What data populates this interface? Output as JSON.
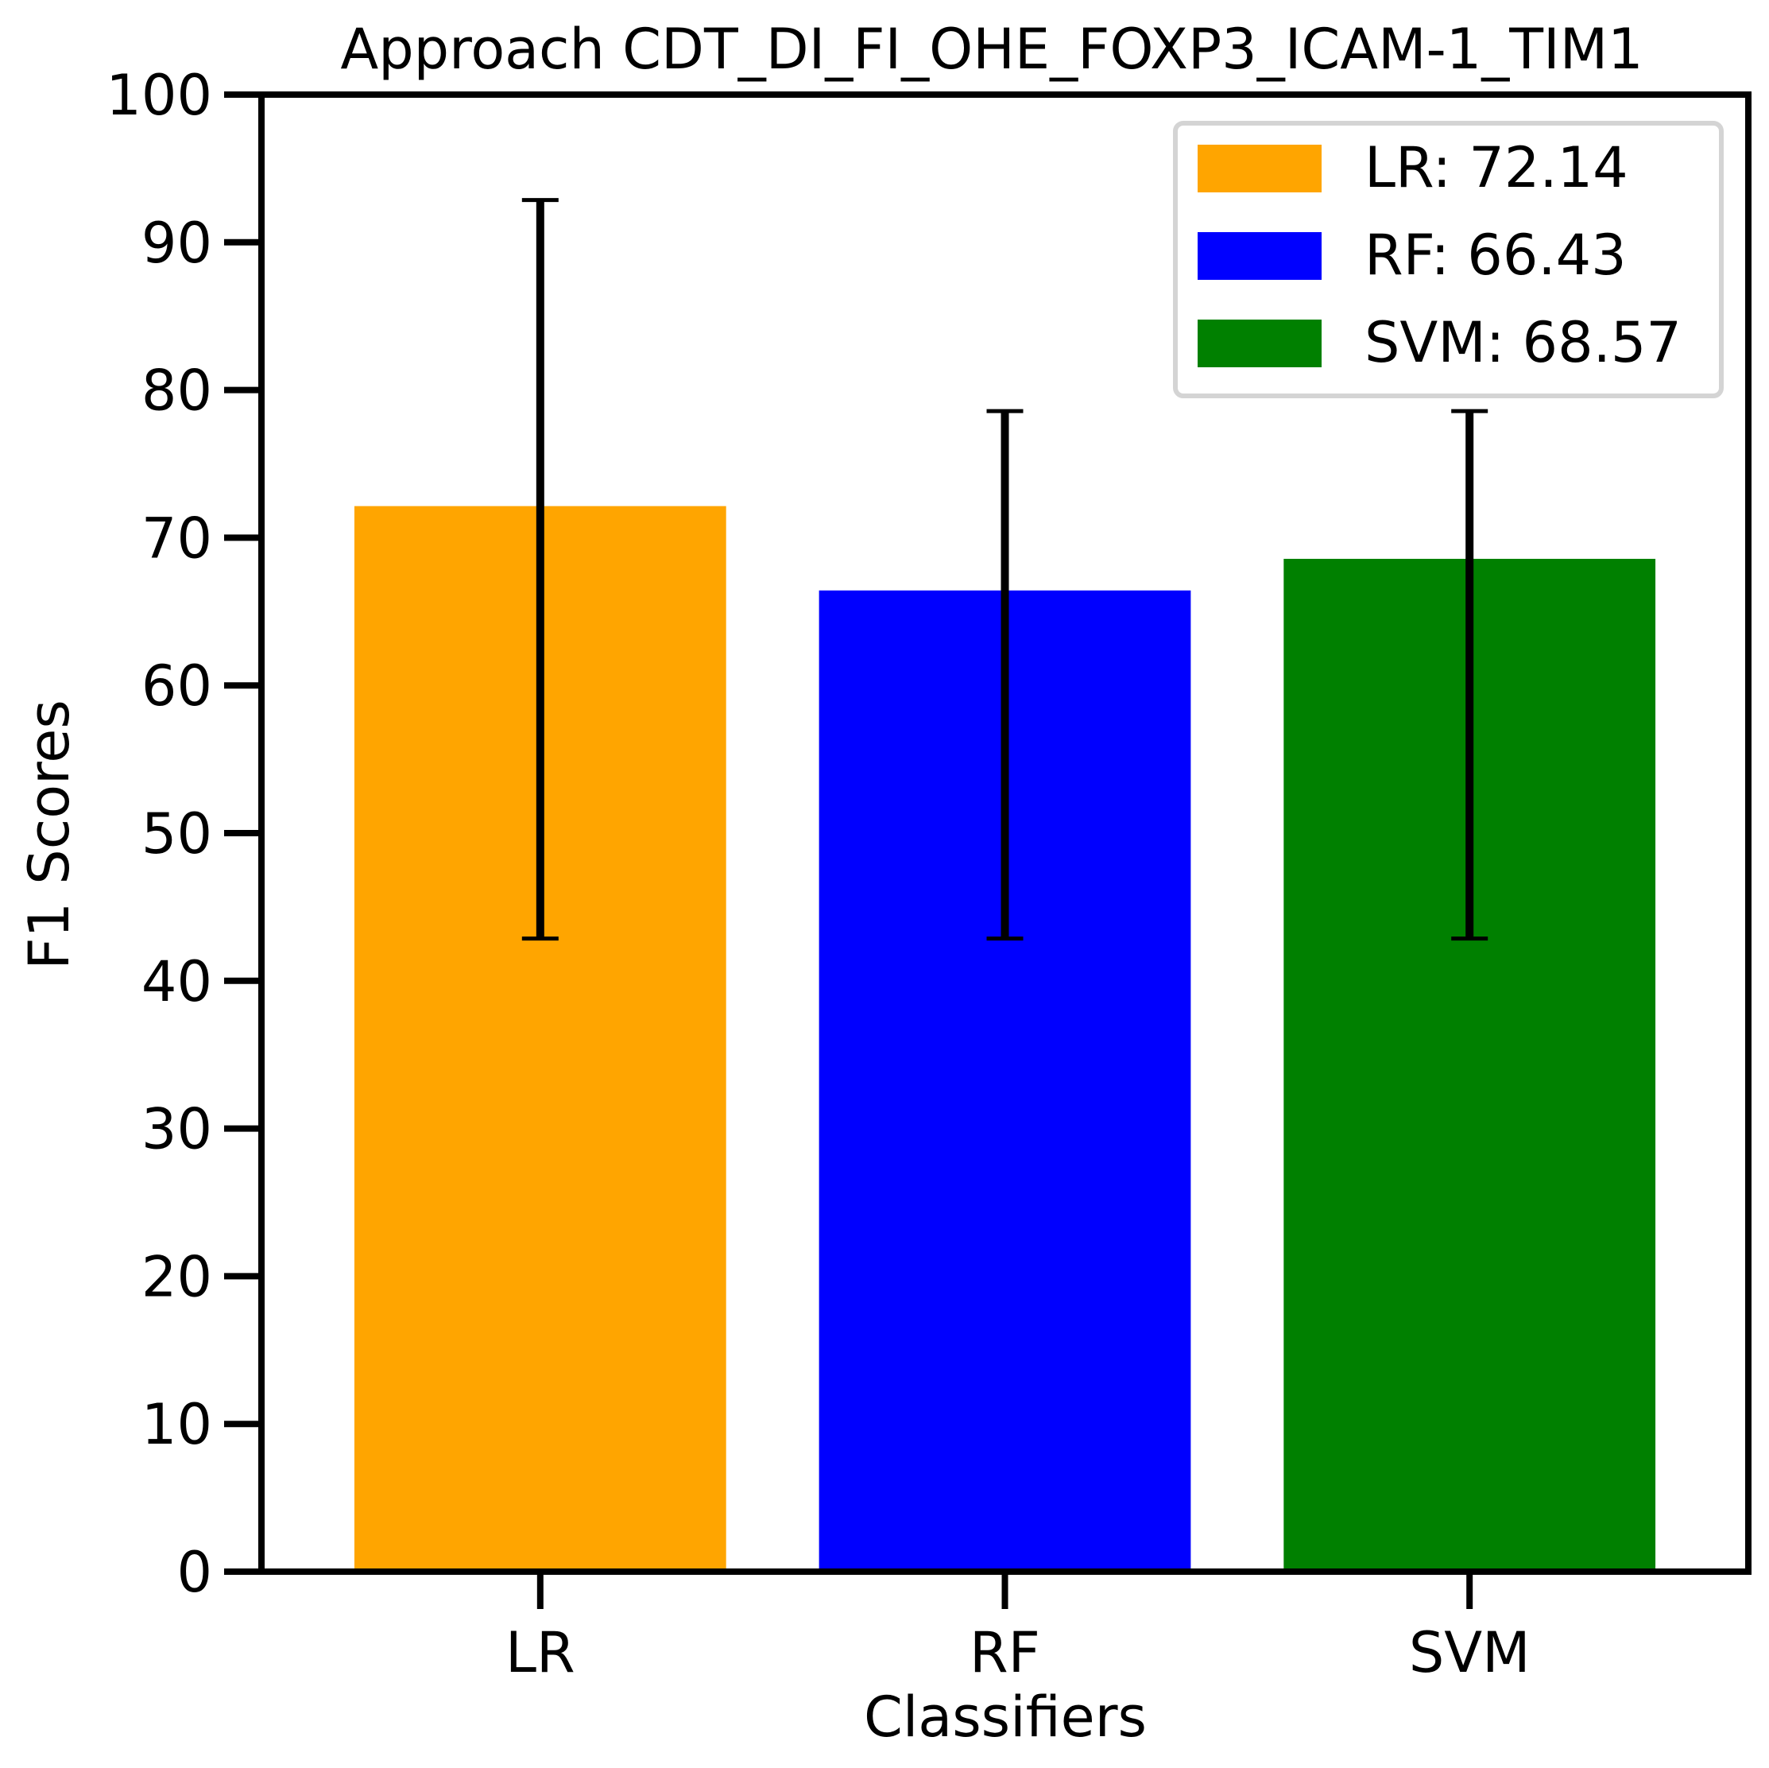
{
  "chart_data": {
    "type": "bar",
    "title": "Approach CDT_DI_FI_OHE_FOXP3_ICAM-1_TIM1",
    "xlabel": "Classifiers",
    "ylabel": "F1 Scores",
    "ylim": [
      0,
      100
    ],
    "yticks": [
      "0",
      "10",
      "20",
      "30",
      "40",
      "50",
      "60",
      "70",
      "80",
      "90",
      "100"
    ],
    "categories": [
      "LR",
      "RF",
      "SVM"
    ],
    "values": [
      72.14,
      66.43,
      68.57
    ],
    "error_low": [
      42.86,
      42.86,
      42.86
    ],
    "error_high": [
      92.86,
      78.57,
      78.57
    ],
    "colors": [
      "#ffa500",
      "#0000ff",
      "#008000"
    ],
    "legend": {
      "position": "upper right",
      "entries": [
        "LR: 72.14",
        "RF: 66.43",
        "SVM: 68.57"
      ]
    },
    "grid": false
  }
}
